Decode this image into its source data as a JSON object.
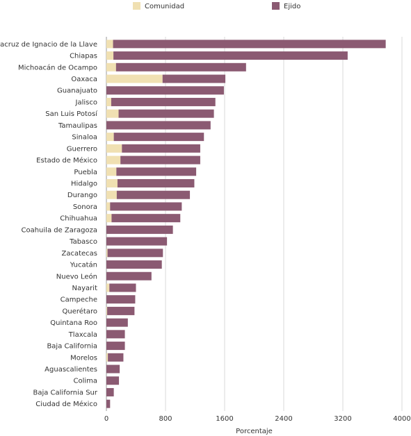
{
  "chart_data": {
    "type": "bar",
    "orientation": "horizontal",
    "stacked": true,
    "xlabel": "Porcentaje",
    "ylabel": "",
    "xlim": [
      0,
      4000
    ],
    "xticks": [
      0,
      800,
      1600,
      2400,
      3200,
      4000
    ],
    "grid": true,
    "legend_position": "top",
    "categories": [
      "Veracruz de Ignacio de la Llave",
      "Chiapas",
      "Michoacán de Ocampo",
      "Oaxaca",
      "Guanajuato",
      "Jalisco",
      "San Luis Potosí",
      "Tamaulipas",
      "Sinaloa",
      "Guerrero",
      "Estado de México",
      "Puebla",
      "Hidalgo",
      "Durango",
      "Sonora",
      "Chihuahua",
      "Coahuila de Zaragoza",
      "Tabasco",
      "Zacatecas",
      "Yucatán",
      "Nuevo León",
      "Nayarit",
      "Campeche",
      "Querétaro",
      "Quintana Roo",
      "Tlaxcala",
      "Baja California",
      "Morelos",
      "Aguascalientes",
      "Colima",
      "Baja California Sur",
      "Ciudad de México"
    ],
    "series": [
      {
        "name": "Comunidad",
        "color": "#f0e0b2",
        "values": [
          90,
          95,
          130,
          760,
          0,
          65,
          165,
          0,
          100,
          210,
          190,
          135,
          150,
          140,
          50,
          70,
          0,
          0,
          15,
          0,
          0,
          40,
          0,
          10,
          0,
          0,
          0,
          20,
          0,
          0,
          0,
          0
        ]
      },
      {
        "name": "Ejido",
        "color": "#8b5a72",
        "values": [
          3690,
          3170,
          1760,
          850,
          1590,
          1410,
          1290,
          1410,
          1220,
          1060,
          1080,
          1080,
          1040,
          990,
          970,
          930,
          900,
          820,
          750,
          750,
          610,
          360,
          390,
          370,
          290,
          250,
          250,
          210,
          180,
          170,
          100,
          50
        ]
      }
    ]
  }
}
